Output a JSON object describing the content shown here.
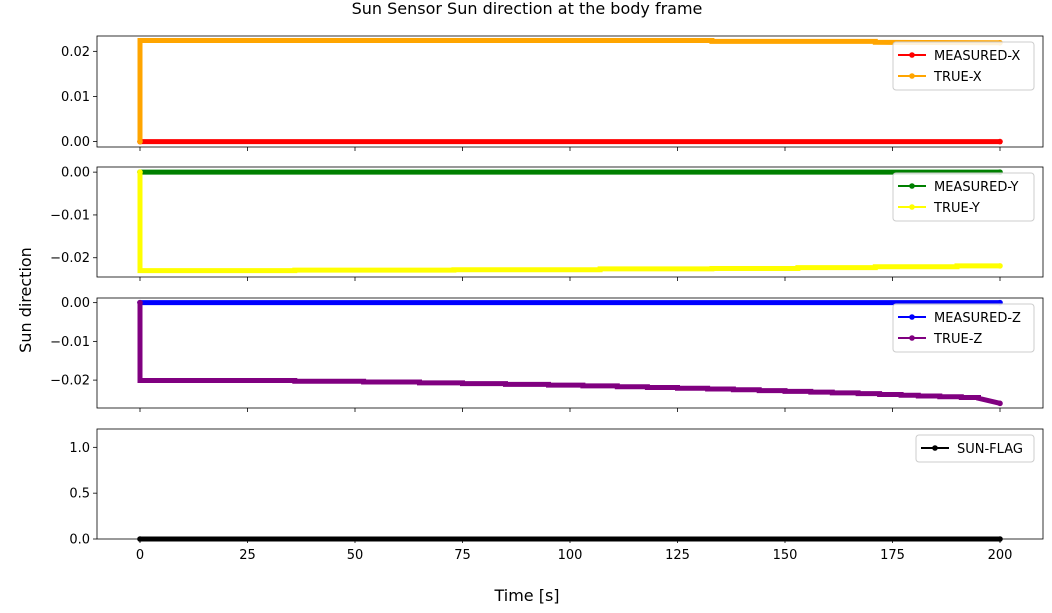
{
  "title": "Sun Sensor Sun direction at the body frame",
  "ylabel": "Sun direction",
  "xlabel": "Time [s]",
  "chart_data": [
    {
      "type": "line",
      "xlim": [
        -10,
        210
      ],
      "ylim": [
        -0.0012,
        0.0234
      ],
      "yticks": [
        0.0,
        0.01,
        0.02
      ],
      "ytick_labels": [
        "0.00",
        "0.01",
        "0.02"
      ],
      "grid": false,
      "legend_position": "top-right",
      "series": [
        {
          "name": "MEASURED-X",
          "color": "#ff0000",
          "x": [
            0,
            200
          ],
          "y": [
            0.0,
            0.0
          ]
        },
        {
          "name": "TRUE-X",
          "color": "#ffa500",
          "x": [
            0,
            0,
            133,
            133,
            171,
            171,
            200
          ],
          "y": [
            0.0,
            0.0224,
            0.0224,
            0.0222,
            0.0222,
            0.022,
            0.0219
          ]
        }
      ]
    },
    {
      "type": "line",
      "xlim": [
        -10,
        210
      ],
      "ylim": [
        -0.0245,
        0.0012
      ],
      "yticks": [
        0.0,
        -0.01,
        -0.02
      ],
      "ytick_labels": [
        "0.00",
        "−0.01",
        "−0.02"
      ],
      "grid": false,
      "legend_position": "top-right",
      "series": [
        {
          "name": "MEASURED-Y",
          "color": "#008000",
          "x": [
            0,
            200
          ],
          "y": [
            0.0,
            0.0
          ]
        },
        {
          "name": "TRUE-Y",
          "color": "#ffff00",
          "x": [
            0,
            0,
            36,
            36,
            73,
            73,
            107,
            107,
            133,
            133,
            153,
            153,
            171,
            171,
            190,
            190,
            200
          ],
          "y": [
            0.0,
            -0.023,
            -0.023,
            -0.0229,
            -0.0229,
            -0.0228,
            -0.0228,
            -0.0226,
            -0.0226,
            -0.0225,
            -0.0225,
            -0.0223,
            -0.0223,
            -0.0221,
            -0.0221,
            -0.0219,
            -0.0219
          ]
        }
      ]
    },
    {
      "type": "line",
      "xlim": [
        -10,
        210
      ],
      "ylim": [
        -0.0272,
        0.0012
      ],
      "yticks": [
        0.0,
        -0.01,
        -0.02
      ],
      "ytick_labels": [
        "0.00",
        "−0.01",
        "−0.02"
      ],
      "grid": false,
      "legend_position": "top-right",
      "series": [
        {
          "name": "MEASURED-Z",
          "color": "#0000ff",
          "x": [
            0,
            200
          ],
          "y": [
            0.0,
            0.0
          ]
        },
        {
          "name": "TRUE-Z",
          "color": "#800080",
          "x": [
            0,
            0,
            36,
            36,
            52,
            52,
            65,
            65,
            75,
            75,
            85,
            85,
            95,
            95,
            103,
            103,
            111,
            111,
            118,
            118,
            125,
            125,
            132,
            132,
            138,
            138,
            144,
            144,
            150,
            150,
            156,
            156,
            161,
            161,
            167,
            167,
            172,
            172,
            177,
            177,
            181,
            181,
            186,
            186,
            191,
            191,
            195,
            195,
            200
          ],
          "y": [
            0.0,
            -0.0201,
            -0.0201,
            -0.0203,
            -0.0203,
            -0.0205,
            -0.0205,
            -0.0207,
            -0.0207,
            -0.0209,
            -0.0209,
            -0.0211,
            -0.0211,
            -0.0213,
            -0.0213,
            -0.0215,
            -0.0215,
            -0.0217,
            -0.0217,
            -0.0219,
            -0.0219,
            -0.0221,
            -0.0221,
            -0.0223,
            -0.0223,
            -0.0225,
            -0.0225,
            -0.0227,
            -0.0227,
            -0.0229,
            -0.0229,
            -0.0231,
            -0.0231,
            -0.0233,
            -0.0233,
            -0.0235,
            -0.0235,
            -0.0237,
            -0.0237,
            -0.0239,
            -0.0239,
            -0.0241,
            -0.0241,
            -0.0243,
            -0.0243,
            -0.0245,
            -0.0245,
            -0.0247,
            -0.026
          ]
        }
      ]
    },
    {
      "type": "line",
      "xlim": [
        -10,
        210
      ],
      "ylim": [
        0.0,
        1.2
      ],
      "yticks": [
        0.0,
        0.5,
        1.0
      ],
      "ytick_labels": [
        "0.0",
        "0.5",
        "1.0"
      ],
      "xticks": [
        0,
        25,
        50,
        75,
        100,
        125,
        150,
        175,
        200
      ],
      "xtick_labels": [
        "0",
        "25",
        "50",
        "75",
        "100",
        "125",
        "150",
        "175",
        "200"
      ],
      "grid": false,
      "legend_position": "top-right",
      "series": [
        {
          "name": "SUN-FLAG",
          "color": "#000000",
          "x": [
            0,
            200
          ],
          "y": [
            0.0,
            0.0
          ]
        }
      ]
    }
  ]
}
